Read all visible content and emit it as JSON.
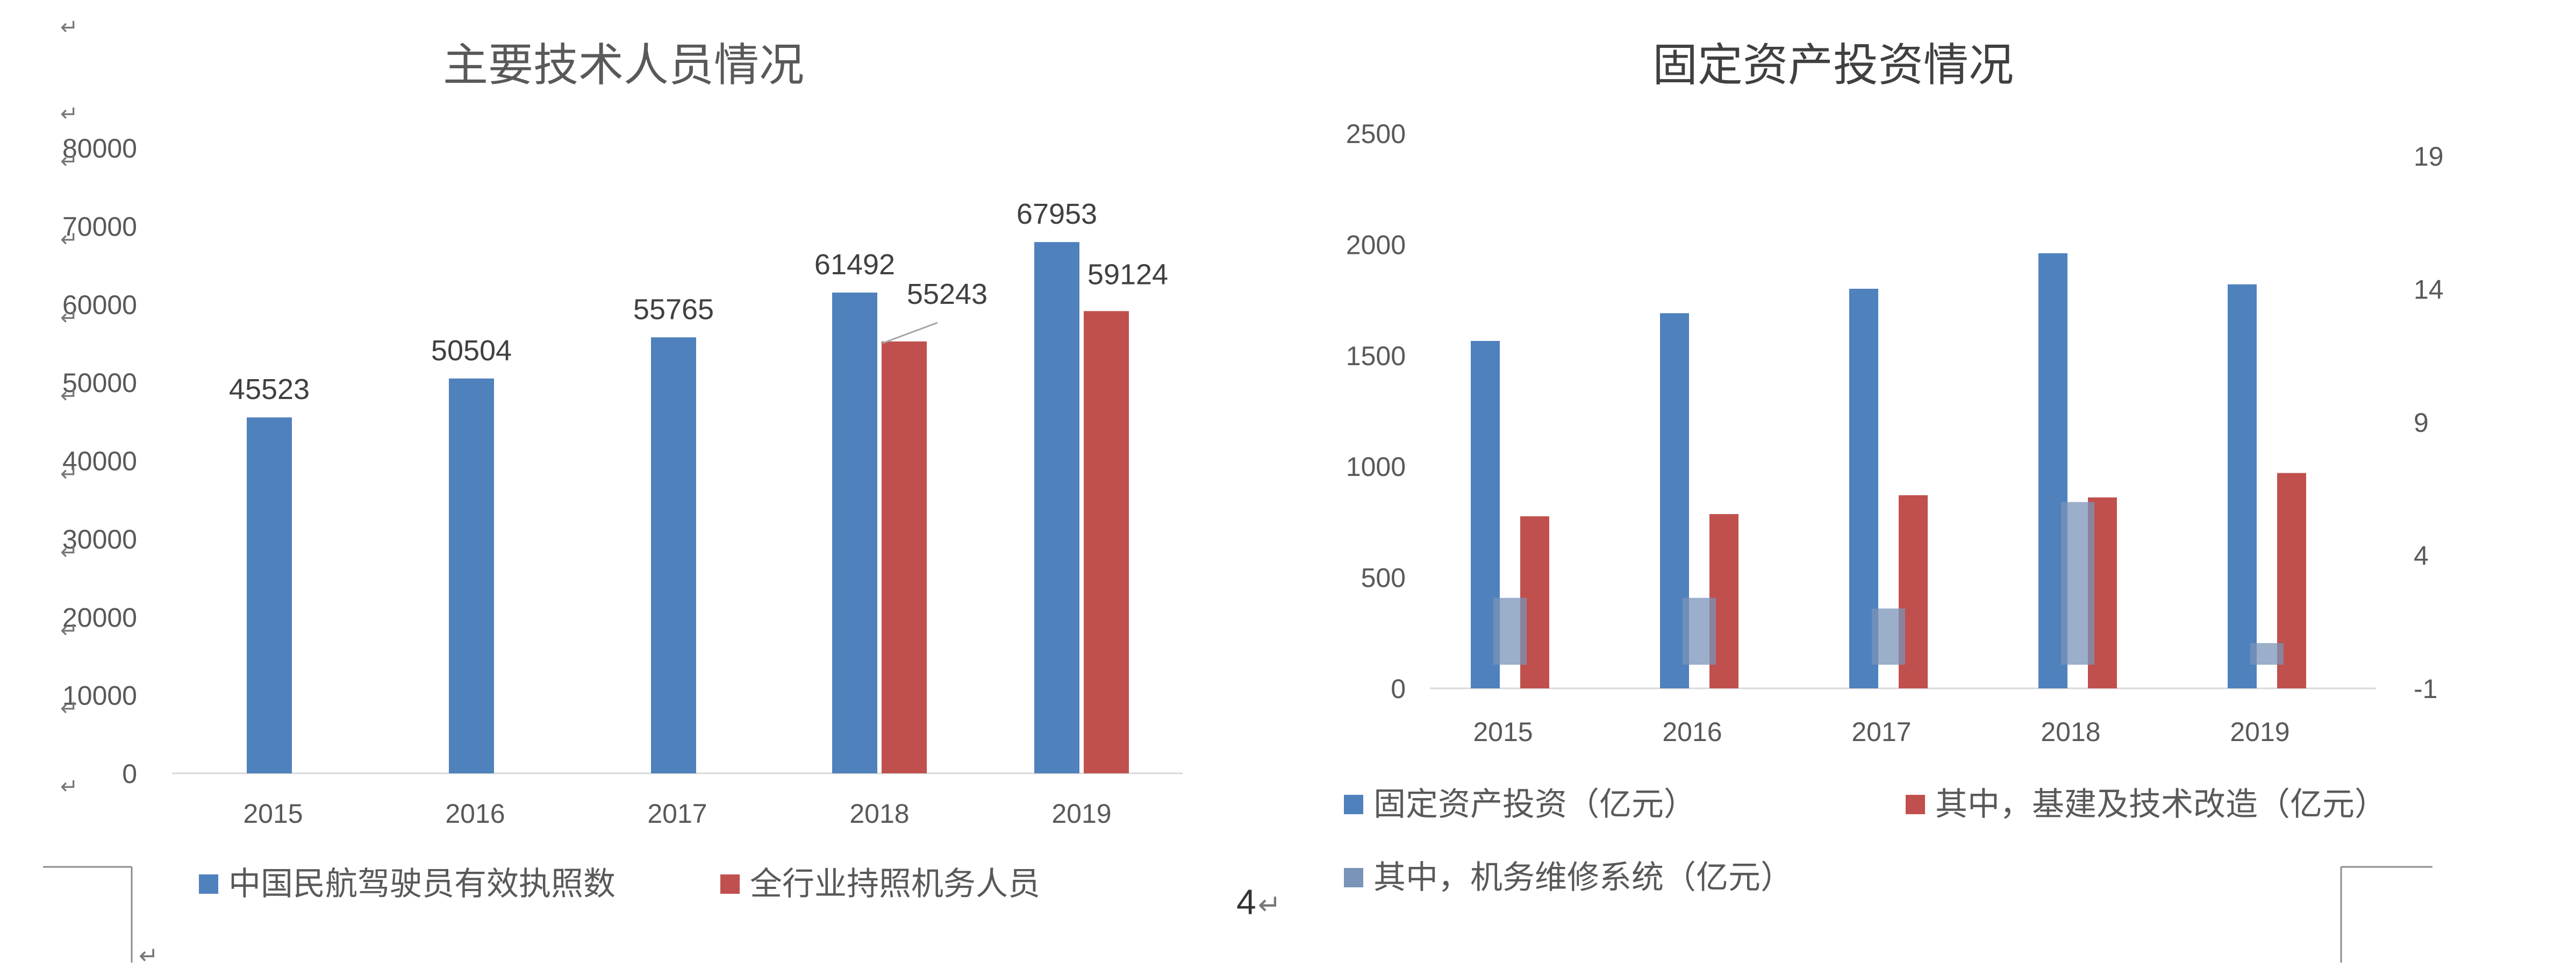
{
  "chart_data": [
    {
      "type": "bar",
      "title": "主要技术人员情况",
      "categories": [
        "2015",
        "2016",
        "2017",
        "2018",
        "2019"
      ],
      "ylim": [
        0,
        80000
      ],
      "yticks": [
        "0",
        "10000",
        "20000",
        "30000",
        "40000",
        "50000",
        "60000",
        "70000",
        "80000"
      ],
      "grid": false,
      "legend_position": "bottom",
      "series": [
        {
          "name": "中国民航驾驶员有效执照数",
          "color": "#4F81BD",
          "values": [
            45523,
            50504,
            55765,
            61492,
            67953
          ],
          "labels": [
            "45523",
            "50504",
            "55765",
            "61492",
            "67953"
          ]
        },
        {
          "name": "全行业持照机务人员",
          "color": "#C0504D",
          "values": [
            null,
            null,
            null,
            55243,
            59124
          ],
          "labels": [
            "",
            "",
            "",
            "55243",
            "59124"
          ]
        }
      ]
    },
    {
      "type": "bar",
      "title": "固定资产投资情况",
      "categories": [
        "2015",
        "2016",
        "2017",
        "2018",
        "2019"
      ],
      "ylim": [
        0,
        2500
      ],
      "yticks": [
        "0",
        "500",
        "1000",
        "1500",
        "2000",
        "2500"
      ],
      "y2lim": [
        -1,
        19
      ],
      "y2ticks": [
        "-1",
        "4",
        "9",
        "14",
        "19"
      ],
      "grid": false,
      "legend_position": "bottom",
      "series": [
        {
          "name": "固定资产投资（亿元）",
          "color": "#4F81BD",
          "axis": "left",
          "values": [
            1565,
            1690,
            1800,
            1960,
            1820
          ]
        },
        {
          "name": "其中，基建及技术改造（亿元）",
          "color": "#C0504D",
          "axis": "left",
          "values": [
            775,
            785,
            870,
            860,
            970
          ]
        },
        {
          "name": "其中，机务维修系统（亿元）",
          "color": "#7A93B8",
          "axis": "right",
          "values": [
            2.4,
            2.4,
            2.0,
            6.0,
            0.7
          ]
        }
      ]
    }
  ],
  "page_number": "4",
  "return_mark": "↵"
}
